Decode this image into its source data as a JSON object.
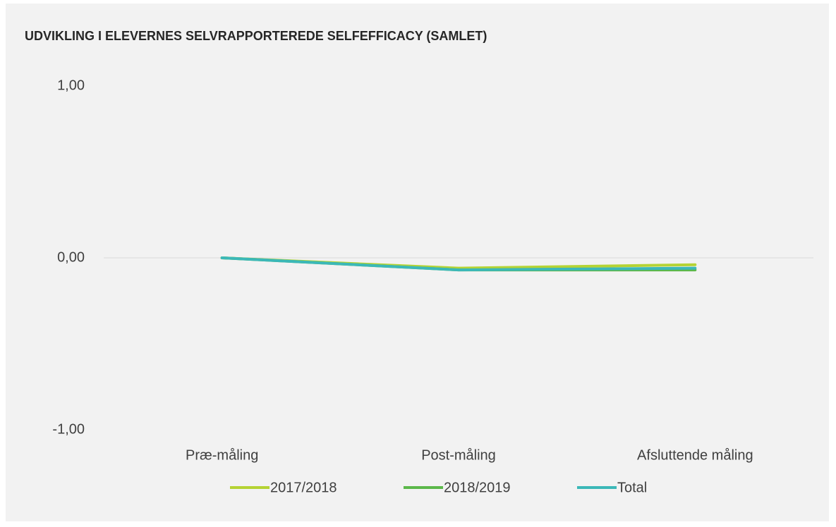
{
  "chart_data": {
    "type": "line",
    "title": "UDVIKLING I ELEVERNES SELVRAPPORTEREDE SELFEFFICACY (SAMLET)",
    "categories": [
      "Præ-måling",
      "Post-måling",
      "Afsluttende måling"
    ],
    "series": [
      {
        "name": "2017/2018",
        "color": "#b5d334",
        "values": [
          0,
          -0.06,
          -0.04
        ]
      },
      {
        "name": "2018/2019",
        "color": "#5cb84a",
        "values": [
          0,
          -0.07,
          -0.07
        ]
      },
      {
        "name": "Total",
        "color": "#3bb8b8",
        "values": [
          0,
          -0.07,
          -0.06
        ]
      }
    ],
    "ylim": [
      -1,
      1
    ],
    "yticks": [
      {
        "value": -1,
        "label": "-1,00"
      },
      {
        "value": 0,
        "label": "0,00"
      },
      {
        "value": 1,
        "label": "1,00"
      }
    ],
    "grid": false,
    "legend": "bottom"
  }
}
